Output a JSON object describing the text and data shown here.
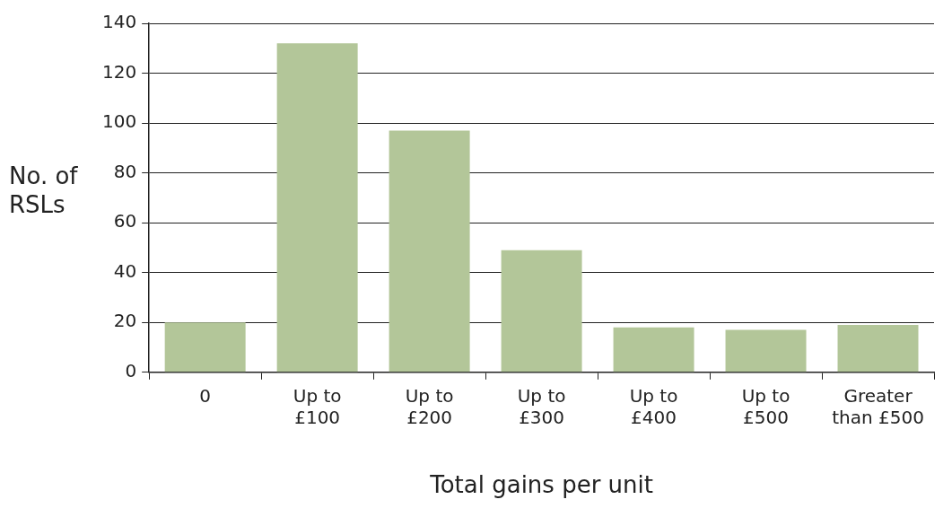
{
  "chart_data": {
    "type": "bar",
    "xlabel": "Total gains per unit",
    "ylabel": "No. of\nRSLs",
    "categories": [
      "0",
      "Up to\n£100",
      "Up to\n£200",
      "Up to\n£300",
      "Up to\n£400",
      "Up to\n£500",
      "Greater\nthan £500"
    ],
    "values": [
      20,
      132,
      97,
      49,
      18,
      17,
      19
    ],
    "color": "#b3c699",
    "ylim": [
      0,
      140
    ],
    "yticks": [
      0,
      20,
      40,
      60,
      80,
      100,
      120,
      140
    ],
    "grid": "y",
    "legend": false
  }
}
